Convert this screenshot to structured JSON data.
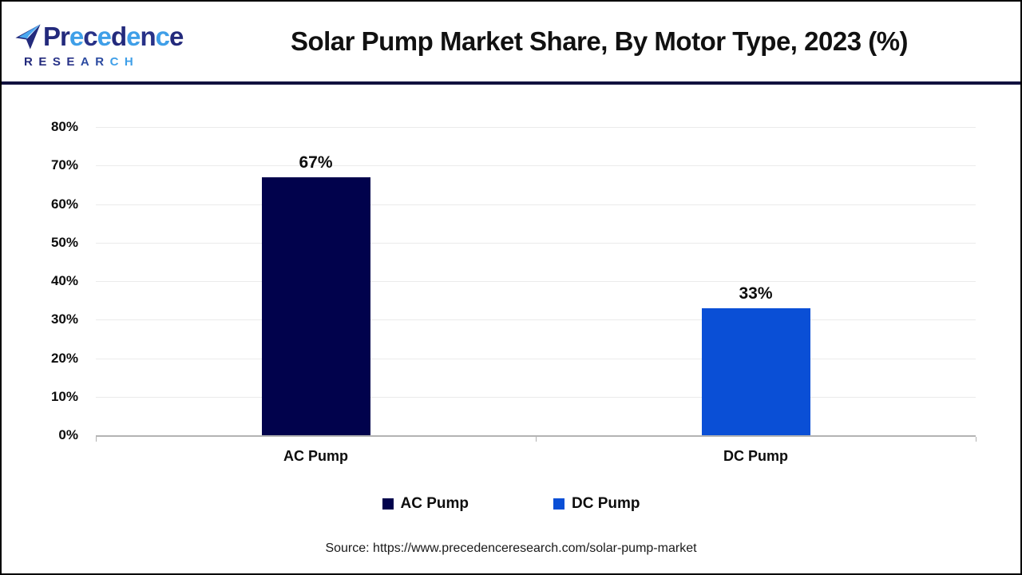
{
  "header": {
    "logo": {
      "word_letters": [
        {
          "ch": "P",
          "color": "#232a7c"
        },
        {
          "ch": "r",
          "color": "#232a7c"
        },
        {
          "ch": "e",
          "color": "#3f9fe8"
        },
        {
          "ch": "c",
          "color": "#283288"
        },
        {
          "ch": "e",
          "color": "#3f9fe8"
        },
        {
          "ch": "d",
          "color": "#232a7c"
        },
        {
          "ch": "e",
          "color": "#3f9fe8"
        },
        {
          "ch": "n",
          "color": "#283288"
        },
        {
          "ch": "c",
          "color": "#3f9fe8"
        },
        {
          "ch": "e",
          "color": "#232a7c"
        }
      ],
      "research_letters": [
        {
          "ch": "R",
          "color": "#232a7c"
        },
        {
          "ch": "E",
          "color": "#232a7c"
        },
        {
          "ch": "S",
          "color": "#283288"
        },
        {
          "ch": "E",
          "color": "#283288"
        },
        {
          "ch": "A",
          "color": "#2b4aa0"
        },
        {
          "ch": "R",
          "color": "#2b4aa0"
        },
        {
          "ch": "C",
          "color": "#3f9fe8"
        },
        {
          "ch": "H",
          "color": "#3f9fe8"
        }
      ]
    },
    "title": "Solar Pump Market Share, By Motor Type, 2023 (%)"
  },
  "chart_data": {
    "type": "bar",
    "title": "Solar Pump Market Share, By Motor Type, 2023 (%)",
    "categories": [
      "AC Pump",
      "DC Pump"
    ],
    "values": [
      67,
      33
    ],
    "value_labels": [
      "67%",
      "33%"
    ],
    "unit": "%",
    "bar_colors": [
      "#01024C",
      "#0A4FD6"
    ],
    "xlabel": "",
    "ylabel": "",
    "ylim": [
      0,
      80
    ],
    "ytick_step": 10,
    "ytick_labels": [
      "0%",
      "10%",
      "20%",
      "30%",
      "40%",
      "50%",
      "60%",
      "70%",
      "80%"
    ],
    "grid": true,
    "legend": [
      {
        "label": "AC Pump",
        "color": "#01024C"
      },
      {
        "label": "DC Pump",
        "color": "#0A4FD6"
      }
    ],
    "legend_position": "bottom"
  },
  "footer": {
    "source": "Source: https://www.precedenceresearch.com/solar-pump-market"
  },
  "colors": {
    "accent_navy": "#01024C",
    "accent_blue": "#0A4FD6",
    "divider_navy": "#12123F",
    "axis_gray": "#b3b3b3",
    "grid_gray": "#ebebeb"
  }
}
